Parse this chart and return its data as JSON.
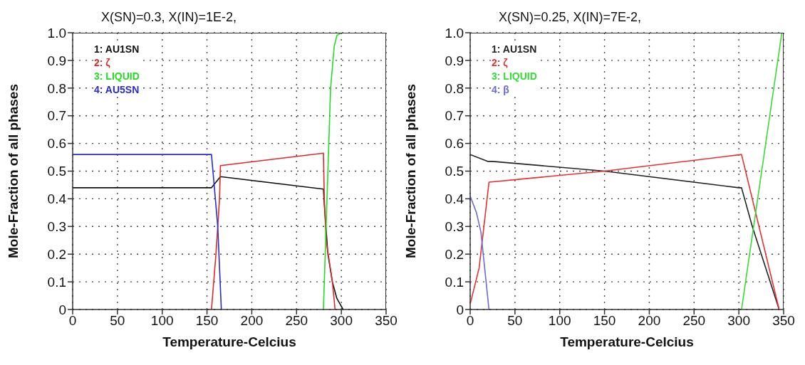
{
  "chart_data": [
    {
      "type": "line",
      "title": "X(SN)=0.3, X(IN)=1E-2,",
      "xlabel": "Temperature-Celcius",
      "ylabel": "Mole-Fraction of all phases",
      "xlim": [
        0,
        350
      ],
      "ylim": [
        0,
        1
      ],
      "xticks": [
        0,
        50,
        100,
        150,
        200,
        250,
        300,
        350
      ],
      "yticks": [
        0,
        0.1,
        0.2,
        0.3,
        0.4,
        0.5,
        0.6,
        0.7,
        0.8,
        0.9,
        {
          "value": 1,
          "label": "1.0"
        }
      ],
      "grid": true,
      "legend": "top left",
      "marker": "none",
      "line_style": "solid",
      "series": [
        {
          "name": "1: AU1SN",
          "color": "#111111",
          "x": [
            0,
            155,
            160,
            165,
            280,
            281,
            285,
            290,
            295,
            302
          ],
          "values": [
            0.44,
            0.44,
            0.46,
            0.48,
            0.435,
            0.38,
            0.2,
            0.1,
            0.04,
            0
          ]
        },
        {
          "name": "2: ζ",
          "color": "#e02828",
          "x": [
            155,
            160,
            164,
            165,
            280,
            281,
            283,
            290,
            293
          ],
          "values": [
            0,
            0.2,
            0.4,
            0.52,
            0.565,
            0.4,
            0.25,
            0.1,
            0
          ]
        },
        {
          "name": "3: LIQUID",
          "color": "#22dd22",
          "x": [
            280,
            282,
            285,
            288,
            292,
            295,
            300,
            350
          ],
          "values": [
            0,
            0.2,
            0.5,
            0.8,
            0.95,
            0.99,
            1,
            1
          ]
        },
        {
          "name": "4: AU5SN",
          "color": "#2a2ad0",
          "x": [
            0,
            155,
            158,
            162,
            164,
            166
          ],
          "values": [
            0.56,
            0.56,
            0.45,
            0.3,
            0.15,
            0
          ]
        }
      ]
    },
    {
      "type": "line",
      "title": "X(SN)=0.25, X(IN)=7E-2,",
      "xlabel": "Temperature-Celcius",
      "ylabel": "Mole-Fraction of all phases",
      "xlim": [
        0,
        350
      ],
      "ylim": [
        0,
        1
      ],
      "xticks": [
        0,
        50,
        100,
        150,
        200,
        250,
        300,
        350
      ],
      "yticks": [
        0,
        0.1,
        0.2,
        0.3,
        0.4,
        0.5,
        0.6,
        0.7,
        0.8,
        0.9,
        {
          "value": 1,
          "label": "1.0"
        }
      ],
      "grid": true,
      "legend": "top left",
      "marker": "none",
      "line_style": "solid",
      "series": [
        {
          "name": "1: AU1SN",
          "color": "#222222",
          "x": [
            0,
            20,
            25,
            150,
            300,
            303,
            315,
            345
          ],
          "values": [
            0.56,
            0.535,
            0.535,
            0.5,
            0.44,
            0.44,
            0.3,
            0
          ]
        },
        {
          "name": "2: ζ",
          "color": "#e83030",
          "x": [
            0,
            10,
            21,
            150,
            303,
            345
          ],
          "values": [
            0.02,
            0.15,
            0.46,
            0.5,
            0.56,
            0
          ]
        },
        {
          "name": "3: LIQUID",
          "color": "#33dd33",
          "x": [
            303,
            348
          ],
          "values": [
            0,
            1
          ]
        },
        {
          "name": "4: β",
          "color": "#6a6ad8",
          "x": [
            0,
            7,
            12,
            21
          ],
          "values": [
            0.41,
            0.35,
            0.28,
            0
          ]
        }
      ]
    }
  ]
}
